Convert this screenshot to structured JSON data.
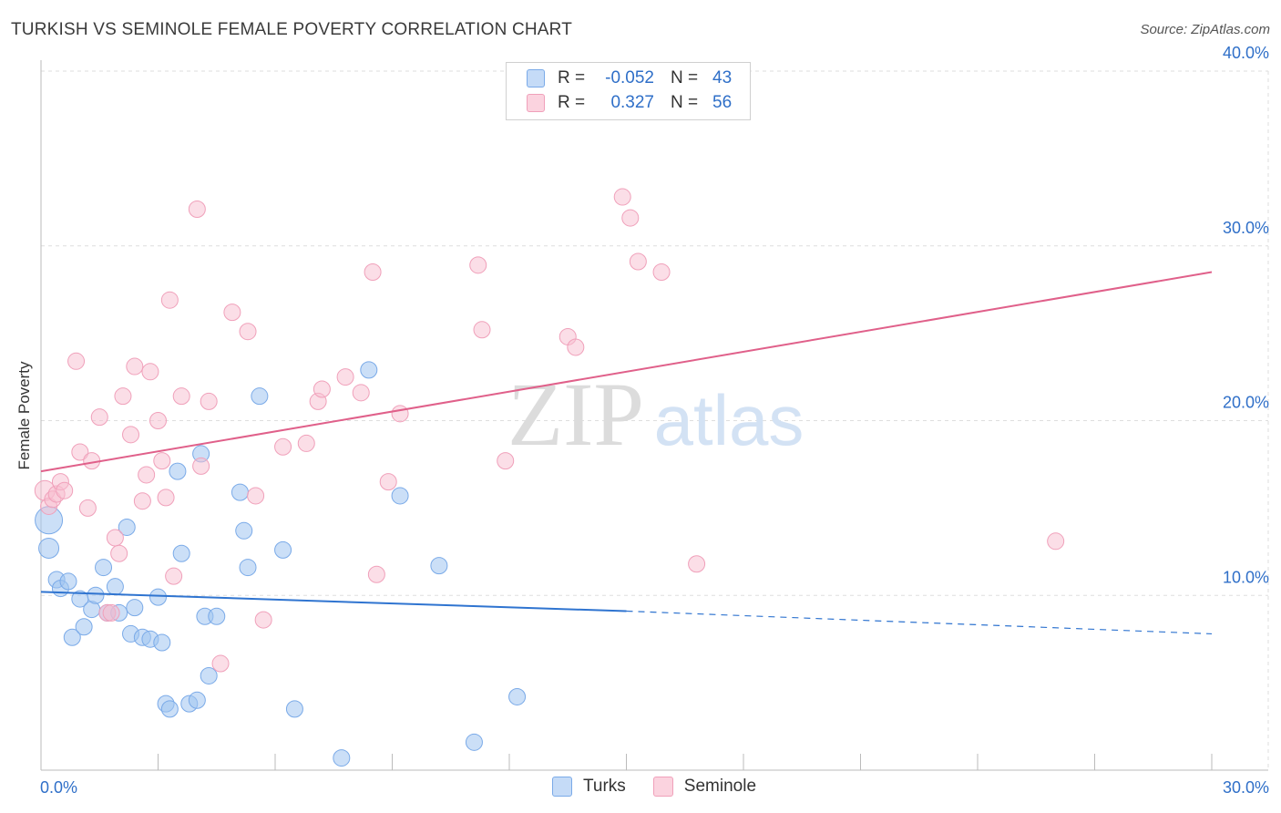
{
  "header": {
    "title": "TURKISH VS SEMINOLE FEMALE POVERTY CORRELATION CHART",
    "source": "Source: ZipAtlas.com"
  },
  "watermark": {
    "zip": "ZIP",
    "atlas": "atlas"
  },
  "legend": {
    "rows": [
      {
        "r_label": "R =",
        "r_value": "-0.052",
        "n_label": "N =",
        "n_value": "43",
        "color": "#7aaae8"
      },
      {
        "r_label": "R =",
        "r_value": "0.327",
        "n_label": "N =",
        "n_value": "56",
        "color": "#f0a0ba"
      }
    ]
  },
  "bottom_legend": {
    "turks": "Turks",
    "seminole": "Seminole"
  },
  "chart_data": {
    "type": "scatter",
    "title": "TURKISH VS SEMINOLE FEMALE POVERTY CORRELATION CHART",
    "xlabel": "",
    "ylabel": "Female Poverty",
    "xlim": [
      0,
      30
    ],
    "ylim": [
      0,
      40
    ],
    "x_tick_labels": [
      "0.0%",
      "30.0%"
    ],
    "y_ticks": [
      10,
      20,
      30,
      40
    ],
    "y_tick_labels": [
      "10.0%",
      "20.0%",
      "30.0%",
      "40.0%"
    ],
    "grid": true,
    "legend_position": "top-center",
    "series": [
      {
        "name": "Turks",
        "color": "#7aaae8",
        "line_color": "#2f74d0",
        "trend": {
          "x0": 0,
          "y0": 10.2,
          "x1": 15,
          "y1": 9.1,
          "extend_to_x": 30,
          "extend_y": 7.8
        },
        "points": [
          [
            0.2,
            14.3
          ],
          [
            0.2,
            12.7
          ],
          [
            0.4,
            10.9
          ],
          [
            0.5,
            10.4
          ],
          [
            0.7,
            10.8
          ],
          [
            0.8,
            7.6
          ],
          [
            1.0,
            9.8
          ],
          [
            1.1,
            8.2
          ],
          [
            1.3,
            9.2
          ],
          [
            1.4,
            10.0
          ],
          [
            1.6,
            11.6
          ],
          [
            1.7,
            9.0
          ],
          [
            1.9,
            10.5
          ],
          [
            2.0,
            9.0
          ],
          [
            2.2,
            13.9
          ],
          [
            2.3,
            7.8
          ],
          [
            2.4,
            9.3
          ],
          [
            2.6,
            7.6
          ],
          [
            2.8,
            7.5
          ],
          [
            3.0,
            9.9
          ],
          [
            3.1,
            7.3
          ],
          [
            3.2,
            3.8
          ],
          [
            3.3,
            3.5
          ],
          [
            3.5,
            17.1
          ],
          [
            3.6,
            12.4
          ],
          [
            3.8,
            3.8
          ],
          [
            4.0,
            4.0
          ],
          [
            4.1,
            18.1
          ],
          [
            4.2,
            8.8
          ],
          [
            4.3,
            5.4
          ],
          [
            4.5,
            8.8
          ],
          [
            5.1,
            15.9
          ],
          [
            5.2,
            13.7
          ],
          [
            5.3,
            11.6
          ],
          [
            5.6,
            21.4
          ],
          [
            6.2,
            12.6
          ],
          [
            6.5,
            3.5
          ],
          [
            7.7,
            0.7
          ],
          [
            8.4,
            22.9
          ],
          [
            9.2,
            15.7
          ],
          [
            10.2,
            11.7
          ],
          [
            11.1,
            1.6
          ],
          [
            12.2,
            4.2
          ]
        ]
      },
      {
        "name": "Seminole",
        "color": "#f0a0ba",
        "line_color": "#e0608a",
        "trend": {
          "x0": 0,
          "y0": 17.1,
          "x1": 30,
          "y1": 28.5
        },
        "points": [
          [
            0.1,
            16.0
          ],
          [
            0.2,
            15.1
          ],
          [
            0.3,
            15.5
          ],
          [
            0.4,
            15.8
          ],
          [
            0.5,
            16.5
          ],
          [
            0.6,
            16.0
          ],
          [
            0.9,
            23.4
          ],
          [
            1.0,
            18.2
          ],
          [
            1.2,
            15.0
          ],
          [
            1.3,
            17.7
          ],
          [
            1.5,
            20.2
          ],
          [
            1.7,
            9.0
          ],
          [
            1.8,
            9.0
          ],
          [
            1.9,
            13.3
          ],
          [
            2.0,
            12.4
          ],
          [
            2.1,
            21.4
          ],
          [
            2.3,
            19.2
          ],
          [
            2.4,
            23.1
          ],
          [
            2.6,
            15.4
          ],
          [
            2.7,
            16.9
          ],
          [
            2.8,
            22.8
          ],
          [
            3.0,
            20.0
          ],
          [
            3.1,
            17.7
          ],
          [
            3.2,
            15.6
          ],
          [
            3.3,
            26.9
          ],
          [
            3.4,
            11.1
          ],
          [
            3.6,
            21.4
          ],
          [
            4.0,
            32.1
          ],
          [
            4.1,
            17.4
          ],
          [
            4.3,
            21.1
          ],
          [
            4.6,
            6.1
          ],
          [
            4.9,
            26.2
          ],
          [
            5.3,
            25.1
          ],
          [
            5.5,
            15.7
          ],
          [
            5.7,
            8.6
          ],
          [
            6.2,
            18.5
          ],
          [
            6.8,
            18.7
          ],
          [
            7.1,
            21.1
          ],
          [
            7.2,
            21.8
          ],
          [
            7.8,
            22.5
          ],
          [
            8.2,
            21.6
          ],
          [
            8.5,
            28.5
          ],
          [
            8.6,
            11.2
          ],
          [
            8.9,
            16.5
          ],
          [
            9.2,
            20.4
          ],
          [
            11.2,
            28.9
          ],
          [
            11.3,
            25.2
          ],
          [
            11.9,
            17.7
          ],
          [
            13.5,
            24.8
          ],
          [
            13.7,
            24.2
          ],
          [
            14.9,
            32.8
          ],
          [
            15.1,
            31.6
          ],
          [
            15.3,
            29.1
          ],
          [
            15.9,
            28.5
          ],
          [
            16.8,
            11.8
          ],
          [
            26.0,
            13.1
          ]
        ]
      }
    ]
  }
}
